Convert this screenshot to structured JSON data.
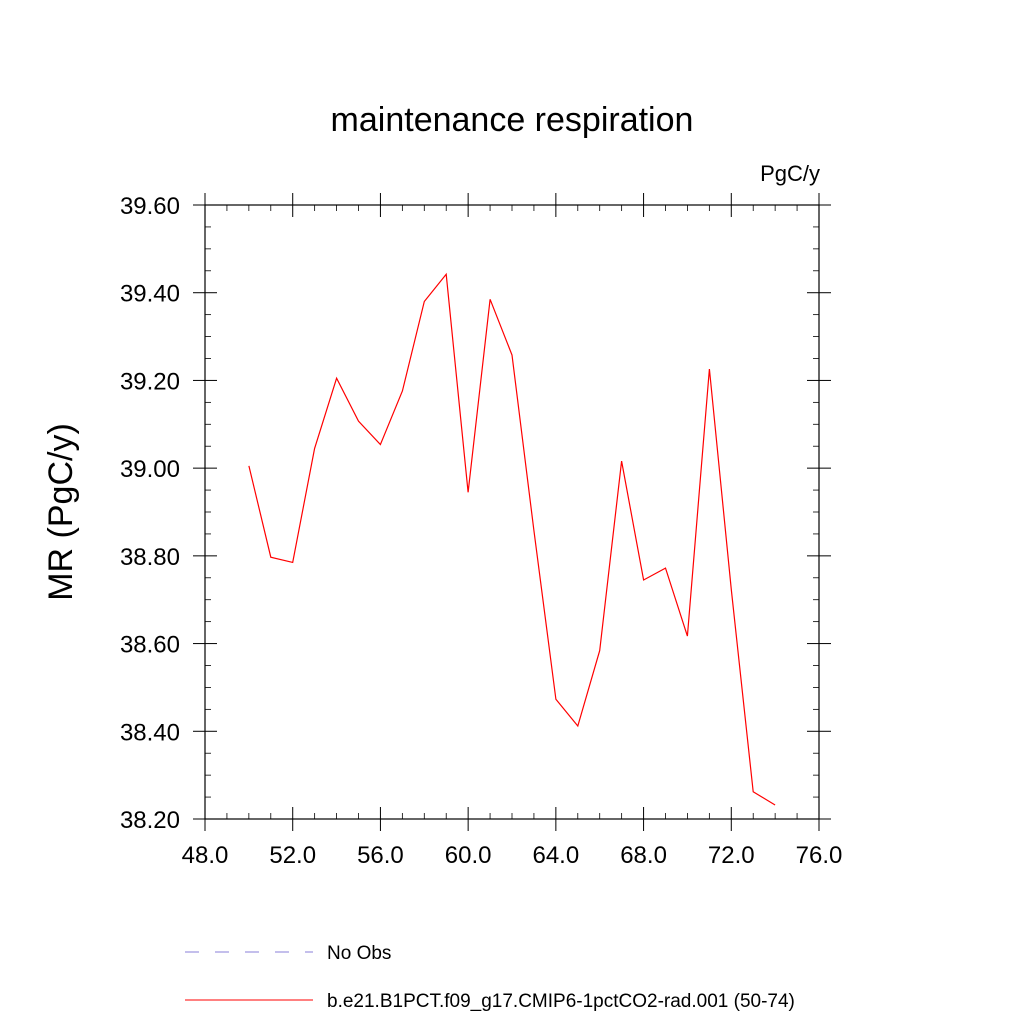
{
  "chart_data": {
    "type": "line",
    "title": "maintenance respiration",
    "units_label": "PgC/y",
    "xlabel": "",
    "ylabel": "MR  (PgC/y)",
    "xlim": [
      48.0,
      76.0
    ],
    "ylim": [
      38.2,
      39.6
    ],
    "xticks": [
      48,
      52,
      56,
      60,
      64,
      68,
      72,
      76
    ],
    "xtick_labels": [
      "48.0",
      "52.0",
      "56.0",
      "60.0",
      "64.0",
      "68.0",
      "72.0",
      "76.0"
    ],
    "yticks": [
      38.2,
      38.4,
      38.6,
      38.8,
      39.0,
      39.2,
      39.4,
      39.6
    ],
    "ytick_labels": [
      "38.20",
      "38.40",
      "38.60",
      "38.80",
      "39.00",
      "39.20",
      "39.40",
      "39.60"
    ],
    "grid": false,
    "legend_position": "bottom",
    "series": [
      {
        "name": "b.e21.B1PCT.f09_g17.CMIP6-1pctCO2-rad.001 (50-74)",
        "color": "#ff0000",
        "line_style": "solid",
        "x": [
          50,
          51,
          52,
          53,
          54,
          55,
          56,
          57,
          58,
          59,
          60,
          61,
          62,
          63,
          64,
          65,
          66,
          67,
          68,
          69,
          70,
          71,
          72,
          73,
          74
        ],
        "y": [
          39.005,
          38.797,
          38.785,
          39.045,
          39.205,
          39.107,
          39.054,
          39.176,
          39.38,
          39.442,
          38.945,
          39.385,
          39.258,
          38.858,
          38.473,
          38.412,
          38.584,
          39.016,
          38.745,
          38.772,
          38.617,
          39.226,
          38.723,
          38.262,
          38.232
        ]
      }
    ],
    "legend": [
      {
        "label": "No Obs",
        "color": "#8a7fd9",
        "line_style": "dashed"
      },
      {
        "label": "b.e21.B1PCT.f09_g17.CMIP6-1pctCO2-rad.001 (50-74)",
        "color": "#ff0000",
        "line_style": "solid"
      }
    ]
  }
}
